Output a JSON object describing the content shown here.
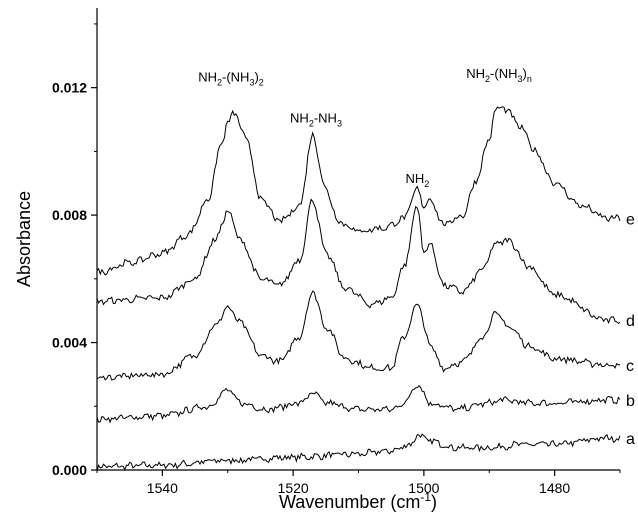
{
  "chart_data": {
    "type": "line",
    "xlabel": "Wavenumber (cm",
    "xlabel_sup": "-1",
    "xlabel_end": ")",
    "ylabel": "Absorbance",
    "xlim": [
      1550,
      1470
    ],
    "ylim": [
      0,
      0.0145
    ],
    "x_reversed": true,
    "yticks": [
      0.0,
      0.004,
      0.008,
      0.012
    ],
    "ytick_labels": [
      "0.000",
      "0.004",
      "0.008",
      "0.012"
    ],
    "xticks": [
      1540,
      1520,
      1500,
      1480
    ],
    "xtick_labels": [
      "1540",
      "1520",
      "1500",
      "1480"
    ],
    "annotations": [
      {
        "x": 1529.5,
        "y": 0.0122,
        "parts": [
          [
            "NH",
            ""
          ],
          [
            "2",
            "sub"
          ],
          [
            "-(NH",
            ""
          ],
          [
            "3",
            "sub"
          ],
          [
            ")",
            ""
          ],
          [
            "2",
            "sub"
          ]
        ]
      },
      {
        "x": 1516.5,
        "y": 0.0109,
        "parts": [
          [
            "NH",
            ""
          ],
          [
            "2",
            "sub"
          ],
          [
            "-NH",
            ""
          ],
          [
            "3",
            "sub"
          ]
        ]
      },
      {
        "x": 1501.0,
        "y": 0.009,
        "parts": [
          [
            "NH",
            ""
          ],
          [
            "2",
            "sub"
          ]
        ]
      },
      {
        "x": 1488.5,
        "y": 0.0123,
        "parts": [
          [
            "NH",
            ""
          ],
          [
            "2",
            "sub"
          ],
          [
            "-(NH",
            ""
          ],
          [
            "3",
            "sub"
          ],
          [
            ")",
            ""
          ],
          [
            "n",
            "sub"
          ]
        ]
      }
    ],
    "series": [
      {
        "name": "a",
        "x": [
          1550,
          1540,
          1530,
          1520,
          1510,
          1505,
          1502,
          1501,
          1499,
          1495,
          1490,
          1485,
          1480,
          1472
        ],
        "y": [
          0.0001,
          0.00015,
          0.0003,
          0.0004,
          0.0005,
          0.0006,
          0.0008,
          0.0011,
          0.0009,
          0.0007,
          0.0007,
          0.0008,
          0.0008,
          0.001
        ]
      },
      {
        "name": "b",
        "x": [
          1550,
          1540,
          1533,
          1530,
          1528,
          1524,
          1519,
          1517,
          1515,
          1510,
          1505,
          1503,
          1501,
          1499,
          1495,
          1490,
          1488,
          1484,
          1480,
          1472
        ],
        "y": [
          0.0016,
          0.0017,
          0.002,
          0.0025,
          0.0021,
          0.0019,
          0.0021,
          0.0024,
          0.0021,
          0.0019,
          0.0019,
          0.0021,
          0.0027,
          0.0021,
          0.0019,
          0.0021,
          0.0022,
          0.0021,
          0.0021,
          0.0022
        ]
      },
      {
        "name": "c",
        "x": [
          1550,
          1540,
          1535,
          1532,
          1530,
          1528,
          1525,
          1522,
          1519,
          1517,
          1515,
          1512,
          1508,
          1505,
          1503,
          1501,
          1499,
          1497,
          1494,
          1491,
          1489,
          1487,
          1484,
          1480,
          1472
        ],
        "y": [
          0.0029,
          0.003,
          0.0036,
          0.0045,
          0.0051,
          0.0046,
          0.0036,
          0.0034,
          0.0042,
          0.0056,
          0.0045,
          0.0035,
          0.0032,
          0.0032,
          0.0042,
          0.0052,
          0.0039,
          0.0032,
          0.0034,
          0.0042,
          0.0049,
          0.0045,
          0.0039,
          0.0035,
          0.0033
        ]
      },
      {
        "name": "d",
        "x": [
          1550,
          1540,
          1535,
          1532,
          1530,
          1528,
          1525,
          1522,
          1519,
          1517,
          1515,
          1512,
          1508,
          1505,
          1503,
          1501,
          1500,
          1499,
          1497,
          1494,
          1491,
          1489,
          1487,
          1484,
          1480,
          1472
        ],
        "y": [
          0.0053,
          0.0054,
          0.006,
          0.0072,
          0.0081,
          0.0072,
          0.006,
          0.0058,
          0.0066,
          0.0085,
          0.0068,
          0.0057,
          0.0052,
          0.0054,
          0.0064,
          0.0083,
          0.0068,
          0.0071,
          0.0058,
          0.0056,
          0.0063,
          0.0071,
          0.0072,
          0.0064,
          0.0055,
          0.0047
        ]
      },
      {
        "name": "e",
        "x": [
          1550,
          1545,
          1540,
          1536,
          1533,
          1531,
          1530,
          1529,
          1527,
          1525,
          1522,
          1519,
          1517,
          1515,
          1513,
          1510,
          1506,
          1503,
          1501,
          1500,
          1499,
          1497,
          1494,
          1492,
          1490,
          1489,
          1488,
          1487,
          1485,
          1483,
          1480,
          1476,
          1472
        ],
        "y": [
          0.0062,
          0.0065,
          0.0068,
          0.0074,
          0.0085,
          0.0102,
          0.0109,
          0.0112,
          0.0103,
          0.0085,
          0.0078,
          0.0083,
          0.0105,
          0.0088,
          0.0078,
          0.0075,
          0.0076,
          0.0079,
          0.0088,
          0.0083,
          0.0085,
          0.0077,
          0.008,
          0.0091,
          0.0104,
          0.0113,
          0.0114,
          0.0112,
          0.0107,
          0.01,
          0.009,
          0.0083,
          0.0079
        ]
      }
    ]
  }
}
